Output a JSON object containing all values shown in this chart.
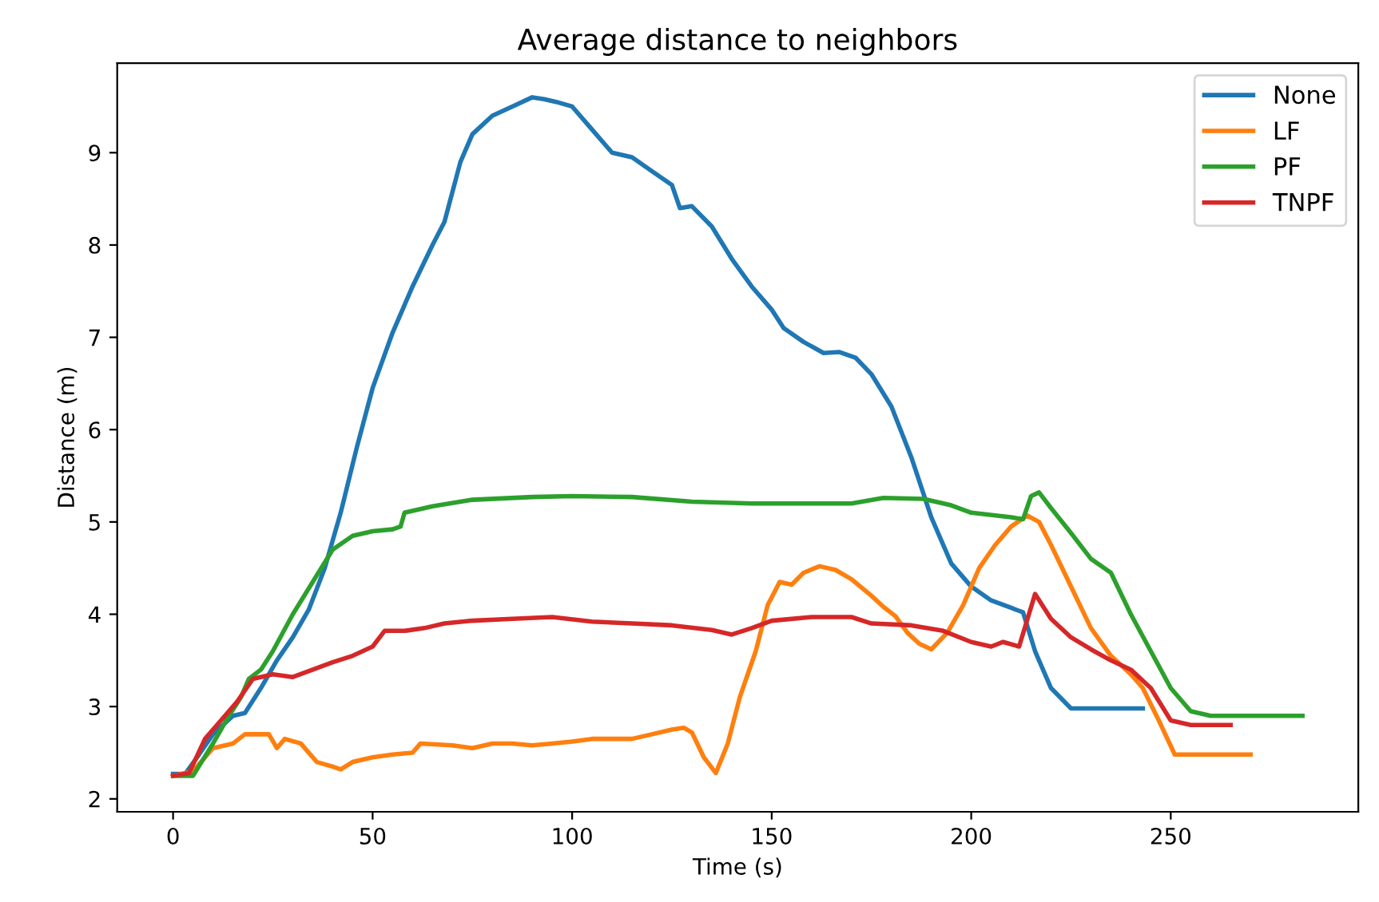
{
  "chart_data": {
    "type": "line",
    "title": "Average distance to neighbors",
    "xlabel": "Time (s)",
    "ylabel": "Distance (m)",
    "xlim": [
      -14,
      297
    ],
    "ylim": [
      1.86,
      9.97
    ],
    "xticks": [
      0,
      50,
      100,
      150,
      200,
      250
    ],
    "yticks": [
      2,
      3,
      4,
      5,
      6,
      7,
      8,
      9
    ],
    "grid": false,
    "legend": "top right",
    "series": [
      {
        "name": "None",
        "color": "#1f77b4",
        "x": [
          0,
          3,
          6,
          10,
          15,
          18,
          22,
          26,
          30,
          34,
          38,
          42,
          46,
          50,
          55,
          60,
          65,
          68,
          72,
          75,
          80,
          85,
          90,
          93,
          96,
          100,
          105,
          110,
          115,
          120,
          125,
          127,
          130,
          135,
          140,
          145,
          150,
          153,
          158,
          163,
          167,
          171,
          175,
          180,
          185,
          190,
          195,
          200,
          205,
          210,
          213,
          216,
          220,
          225,
          235,
          243
        ],
        "values": [
          2.27,
          2.27,
          2.45,
          2.7,
          2.9,
          2.93,
          3.2,
          3.5,
          3.75,
          4.05,
          4.5,
          5.1,
          5.8,
          6.45,
          7.05,
          7.55,
          8.0,
          8.25,
          8.9,
          9.2,
          9.4,
          9.5,
          9.6,
          9.58,
          9.55,
          9.5,
          9.25,
          9.0,
          8.95,
          8.8,
          8.65,
          8.4,
          8.42,
          8.2,
          7.85,
          7.55,
          7.3,
          7.1,
          6.95,
          6.83,
          6.84,
          6.78,
          6.6,
          6.25,
          5.7,
          5.05,
          4.55,
          4.3,
          4.15,
          4.07,
          4.02,
          3.6,
          3.2,
          2.98,
          2.98,
          2.98
        ]
      },
      {
        "name": "LF",
        "color": "#ff7f0e",
        "x": [
          0,
          5,
          10,
          15,
          18,
          24,
          26,
          28,
          32,
          36,
          40,
          42,
          45,
          50,
          55,
          60,
          62,
          70,
          75,
          80,
          85,
          90,
          95,
          100,
          105,
          110,
          115,
          120,
          125,
          128,
          130,
          133,
          136,
          139,
          142,
          146,
          149,
          152,
          155,
          158,
          162,
          166,
          170,
          175,
          178,
          181,
          184,
          187,
          190,
          194,
          198,
          202,
          206,
          210,
          214,
          217,
          220,
          225,
          230,
          235,
          240,
          243,
          247,
          251,
          260,
          270
        ],
        "values": [
          2.25,
          2.3,
          2.55,
          2.6,
          2.7,
          2.7,
          2.55,
          2.65,
          2.6,
          2.4,
          2.35,
          2.32,
          2.4,
          2.45,
          2.48,
          2.5,
          2.6,
          2.58,
          2.55,
          2.6,
          2.6,
          2.58,
          2.6,
          2.62,
          2.65,
          2.65,
          2.65,
          2.7,
          2.75,
          2.77,
          2.72,
          2.45,
          2.28,
          2.6,
          3.1,
          3.6,
          4.1,
          4.35,
          4.32,
          4.45,
          4.52,
          4.48,
          4.38,
          4.2,
          4.08,
          3.98,
          3.8,
          3.68,
          3.62,
          3.8,
          4.1,
          4.5,
          4.75,
          4.95,
          5.07,
          5.0,
          4.75,
          4.3,
          3.85,
          3.55,
          3.35,
          3.2,
          2.85,
          2.48,
          2.48,
          2.48
        ]
      },
      {
        "name": "PF",
        "color": "#2ca02c",
        "x": [
          0,
          5,
          10,
          14,
          17,
          19,
          22,
          25,
          30,
          35,
          40,
          45,
          50,
          55,
          57,
          58,
          65,
          75,
          90,
          100,
          115,
          130,
          145,
          160,
          170,
          178,
          188,
          195,
          200,
          210,
          213,
          215,
          217,
          220,
          225,
          230,
          235,
          240,
          245,
          250,
          255,
          260,
          270,
          283
        ],
        "values": [
          2.25,
          2.25,
          2.6,
          2.9,
          3.1,
          3.3,
          3.4,
          3.6,
          4.0,
          4.35,
          4.7,
          4.85,
          4.9,
          4.92,
          4.95,
          5.1,
          5.17,
          5.24,
          5.27,
          5.28,
          5.27,
          5.22,
          5.2,
          5.2,
          5.2,
          5.26,
          5.25,
          5.18,
          5.1,
          5.05,
          5.03,
          5.28,
          5.32,
          5.15,
          4.88,
          4.6,
          4.45,
          4.0,
          3.6,
          3.2,
          2.95,
          2.9,
          2.9,
          2.9
        ]
      },
      {
        "name": "TNPF",
        "color": "#d62728",
        "x": [
          0,
          4,
          8,
          12,
          16,
          20,
          25,
          30,
          35,
          40,
          45,
          50,
          53,
          58,
          63,
          68,
          75,
          85,
          95,
          105,
          115,
          125,
          135,
          140,
          145,
          150,
          160,
          170,
          175,
          185,
          193,
          200,
          205,
          208,
          212,
          216,
          220,
          225,
          230,
          235,
          240,
          245,
          250,
          255,
          265
        ],
        "values": [
          2.25,
          2.28,
          2.65,
          2.85,
          3.05,
          3.3,
          3.35,
          3.32,
          3.4,
          3.48,
          3.55,
          3.65,
          3.82,
          3.82,
          3.85,
          3.9,
          3.93,
          3.95,
          3.97,
          3.92,
          3.9,
          3.88,
          3.83,
          3.78,
          3.85,
          3.93,
          3.97,
          3.97,
          3.9,
          3.88,
          3.82,
          3.7,
          3.65,
          3.7,
          3.65,
          4.22,
          3.95,
          3.75,
          3.62,
          3.5,
          3.4,
          3.2,
          2.85,
          2.8,
          2.8
        ]
      }
    ]
  }
}
